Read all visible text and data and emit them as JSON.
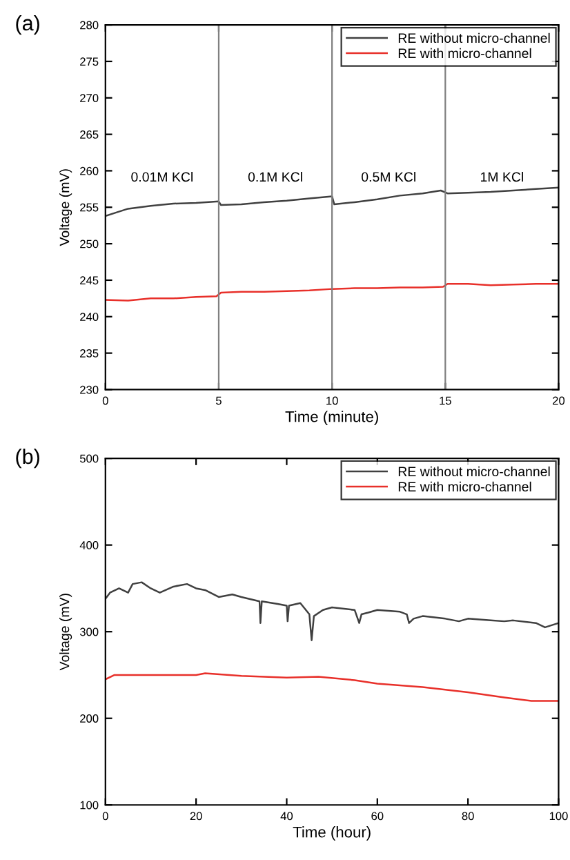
{
  "chart_data": [
    {
      "type": "line",
      "xlabel": "Time (minute)",
      "ylabel": "Voltage (mV)",
      "xlim": [
        0,
        20
      ],
      "xticks": [
        0,
        5,
        10,
        15,
        20
      ],
      "ylim": [
        230,
        280
      ],
      "yticks": [
        230,
        235,
        240,
        245,
        250,
        255,
        260,
        265,
        270,
        275,
        280
      ],
      "grid": false,
      "legend": "top right",
      "annotations": [
        "(a)",
        "0.01M KCl",
        "0.1M KCl",
        "0.5M KCl",
        "1M KCl"
      ],
      "ref_lines": [
        {
          "axis": "x",
          "value": 5,
          "color": "#808080"
        },
        {
          "axis": "x",
          "value": 10,
          "color": "#808080"
        },
        {
          "axis": "x",
          "value": 15,
          "color": "#808080"
        }
      ],
      "series": [
        {
          "name": "RE without micro-channel",
          "color": "#404040",
          "x": [
            0,
            0.5,
            1,
            2,
            3,
            4,
            5,
            5.1,
            6,
            7,
            8,
            9,
            10,
            10.1,
            11,
            12,
            13,
            14,
            14.8,
            15.1,
            16,
            17,
            18,
            19,
            20
          ],
          "values": [
            253.8,
            254.3,
            254.8,
            255.2,
            255.5,
            255.6,
            255.8,
            255.3,
            255.4,
            255.7,
            255.9,
            256.2,
            256.5,
            255.4,
            255.7,
            256.1,
            256.6,
            256.9,
            257.3,
            256.9,
            257.0,
            257.1,
            257.3,
            257.5,
            257.7
          ]
        },
        {
          "name": "RE with micro-channel",
          "color": "#e8302a",
          "x": [
            0,
            1,
            2,
            3,
            4,
            4.9,
            5.1,
            6,
            7,
            8,
            9,
            10,
            11,
            12,
            13,
            14,
            14.9,
            15.1,
            16,
            17,
            18,
            19,
            20
          ],
          "values": [
            242.3,
            242.2,
            242.5,
            242.5,
            242.7,
            242.8,
            243.3,
            243.4,
            243.4,
            243.5,
            243.6,
            243.8,
            243.9,
            243.9,
            244.0,
            244.0,
            244.1,
            244.5,
            244.5,
            244.3,
            244.4,
            244.5,
            244.5
          ]
        }
      ]
    },
    {
      "type": "line",
      "xlabel": "Time (hour)",
      "ylabel": "Voltage (mV)",
      "xlim": [
        0,
        100
      ],
      "xticks": [
        0,
        20,
        40,
        60,
        80,
        100
      ],
      "ylim": [
        100,
        500
      ],
      "yticks": [
        100,
        200,
        300,
        400,
        500
      ],
      "grid": false,
      "legend": "top right",
      "annotations": [
        "(b)"
      ],
      "series": [
        {
          "name": "RE without micro-channel",
          "color": "#404040",
          "x": [
            0,
            1,
            3,
            5,
            6,
            8,
            10,
            12,
            15,
            18,
            20,
            22,
            25,
            28,
            30,
            34,
            34.2,
            34.5,
            38,
            40,
            40.2,
            40.5,
            43,
            45,
            45.5,
            46,
            48,
            50,
            55,
            56,
            56.5,
            58,
            60,
            65,
            66.5,
            67,
            68,
            70,
            75,
            78,
            80,
            85,
            88,
            90,
            95,
            97,
            100
          ],
          "values": [
            338,
            345,
            350,
            345,
            355,
            357,
            350,
            345,
            352,
            355,
            350,
            348,
            340,
            343,
            340,
            335,
            310,
            335,
            332,
            330,
            312,
            330,
            333,
            320,
            290,
            318,
            325,
            328,
            325,
            310,
            320,
            322,
            325,
            323,
            320,
            310,
            315,
            318,
            315,
            312,
            315,
            313,
            312,
            313,
            310,
            305,
            310
          ]
        },
        {
          "name": "RE with micro-channel",
          "color": "#e8302a",
          "x": [
            0,
            2,
            10,
            20,
            22,
            30,
            40,
            47,
            55,
            60,
            70,
            80,
            88,
            94,
            100
          ],
          "values": [
            245,
            250,
            250,
            250,
            252,
            249,
            247,
            248,
            244,
            240,
            236,
            230,
            224,
            220,
            220
          ]
        }
      ]
    }
  ]
}
